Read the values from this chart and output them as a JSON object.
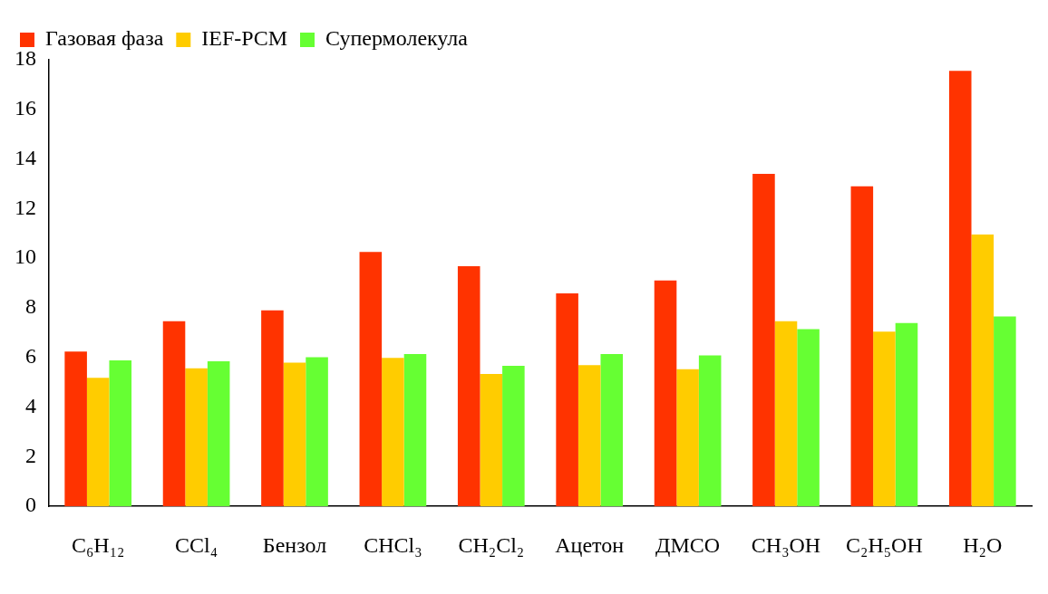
{
  "chart_data": {
    "type": "bar",
    "categories": [
      "C₆H₁₂",
      "CCl₄",
      "Бензол",
      "CHCl₃",
      "CH₂Cl₂",
      "Ацетон",
      "ДМСО",
      "CH₃OH",
      "C₂H₅OH",
      "H₂O"
    ],
    "series": [
      {
        "name": "Газовая фаза",
        "color": "#ff3300",
        "values": [
          6.24,
          7.46,
          7.9,
          10.25,
          9.68,
          8.58,
          9.1,
          13.4,
          12.9,
          17.55
        ]
      },
      {
        "name": "IEF-PCM",
        "color": "#ffcc00",
        "values": [
          5.18,
          5.56,
          5.79,
          5.98,
          5.34,
          5.69,
          5.53,
          7.46,
          7.04,
          10.96
        ]
      },
      {
        "name": "Супермолекула",
        "color": "#66ff33",
        "values": [
          5.88,
          5.85,
          6.01,
          6.14,
          5.66,
          6.14,
          6.08,
          7.14,
          7.39,
          7.65
        ]
      }
    ],
    "ylim": [
      0,
      18
    ],
    "yticks": [
      0,
      2,
      4,
      6,
      8,
      10,
      12,
      14,
      16,
      18
    ],
    "grid": false,
    "legend": "top left"
  }
}
